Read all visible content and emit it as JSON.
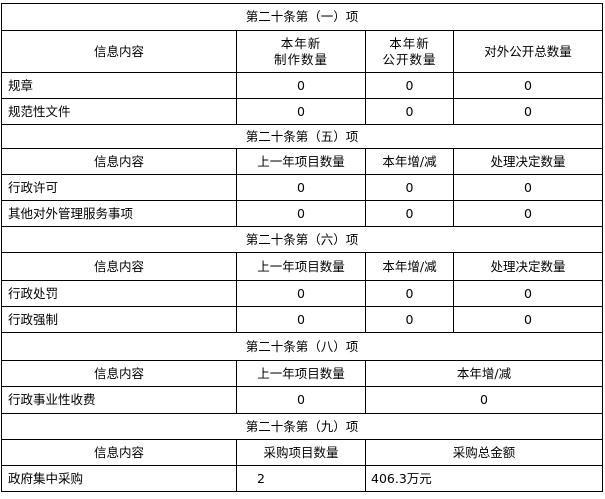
{
  "sec1": {
    "title": "第二十条第（一）项",
    "headers": [
      "信息内容",
      "本年新",
      "制作数量",
      "本年新",
      "公开数量",
      "对外公开总数量"
    ],
    "rows": [
      {
        "name": "规章",
        "v": [
          "0",
          "0",
          "0"
        ]
      },
      {
        "name": "规范性文件",
        "v": [
          "0",
          "0",
          "0"
        ]
      }
    ]
  },
  "sec5": {
    "title": "第二十条第（五）项",
    "headers": [
      "信息内容",
      "上一年项目数量",
      "本年增/减",
      "处理决定数量"
    ],
    "rows": [
      {
        "name": "行政许可",
        "v": [
          "0",
          "0",
          "0"
        ]
      },
      {
        "name": "其他对外管理服务事项",
        "v": [
          "0",
          "0",
          "0"
        ]
      }
    ]
  },
  "sec6": {
    "title": "第二十条第（六）项",
    "headers": [
      "信息内容",
      "上一年项目数量",
      "本年增/减",
      "处理决定数量"
    ],
    "rows": [
      {
        "name": "行政处罚",
        "v": [
          "0",
          "0",
          "0"
        ]
      },
      {
        "name": "行政强制",
        "v": [
          "0",
          "0",
          "0"
        ]
      }
    ]
  },
  "sec8": {
    "title": "第二十条第（八）项",
    "headers": [
      "信息内容",
      "上一年项目数量",
      "本年增/减"
    ],
    "rows": [
      {
        "name": "行政事业性收费",
        "v": [
          "0",
          "0"
        ]
      }
    ]
  },
  "sec9": {
    "title": "第二十条第（九）项",
    "headers": [
      "信息内容",
      "采购项目数量",
      "采购总金额"
    ],
    "rows": [
      {
        "name": "政府集中采购",
        "v": [
          "2",
          "406.3万元"
        ]
      }
    ]
  }
}
